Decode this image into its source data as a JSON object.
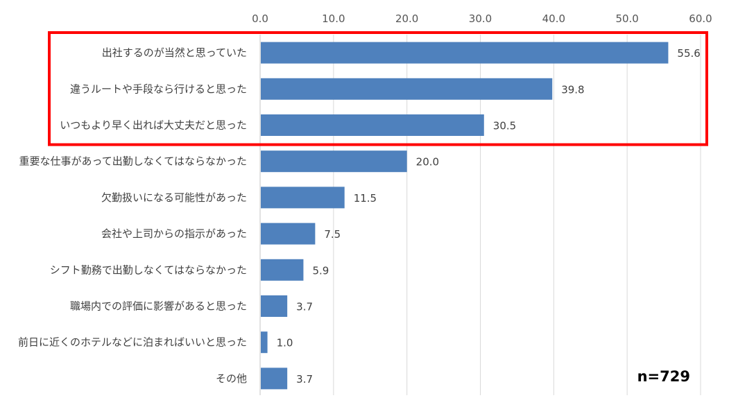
{
  "chart_data": {
    "type": "bar",
    "orientation": "horizontal",
    "categories": [
      "出社するのが当然と思っていた",
      "違うルートや手段なら行けると思った",
      "いつもより早く出れば大丈夫だと思った",
      "重要な仕事があって出勤しなくてはならなかった",
      "欠勤扱いになる可能性があった",
      "会社や上司からの指示があった",
      "シフト勤務で出勤しなくてはならなかった",
      "職場内での評価に影響があると思った",
      "前日に近くのホテルなどに泊まればいいと思った",
      "その他"
    ],
    "values": [
      55.6,
      39.8,
      30.5,
      20.0,
      11.5,
      7.5,
      5.9,
      3.7,
      1.0,
      3.7
    ],
    "value_labels": [
      "55.6",
      "39.8",
      "30.5",
      "20.0",
      "11.5",
      "7.5",
      "5.9",
      "3.7",
      "1.0",
      "3.7"
    ],
    "xlim": [
      0,
      60
    ],
    "ticks": [
      0,
      10,
      20,
      30,
      40,
      50,
      60
    ],
    "tick_labels": [
      "0.0",
      "10.0",
      "20.0",
      "30.0",
      "40.0",
      "50.0",
      "60.0"
    ],
    "axis_position": "top",
    "grid": true,
    "highlighted_categories": [
      0,
      1,
      2
    ],
    "annotation": "n=729",
    "title": "",
    "xlabel": "",
    "ylabel": ""
  },
  "colors": {
    "bar": "#4f81bd",
    "grid": "#d9d9d9",
    "highlight_box": "#ff0000"
  }
}
